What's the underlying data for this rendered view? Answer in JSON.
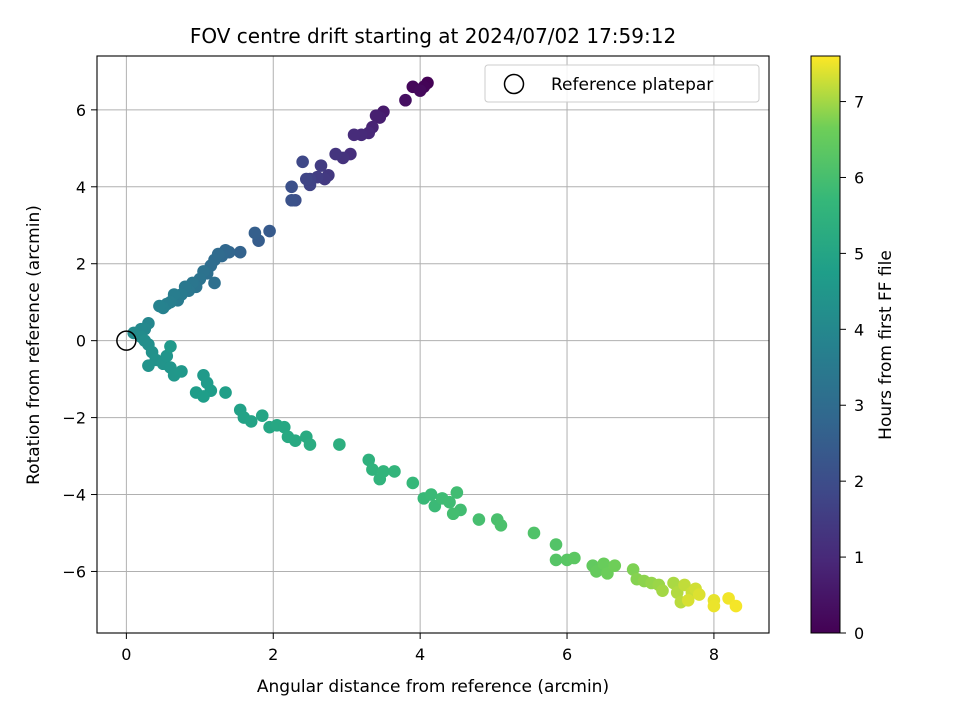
{
  "chart_data": {
    "type": "scatter",
    "title": "FOV centre drift starting at 2024/07/02 17:59:12",
    "xlabel": "Angular distance from reference (arcmin)",
    "ylabel": "Rotation from reference (arcmin)",
    "xlim": [
      -0.4,
      8.75
    ],
    "ylim": [
      -7.6,
      7.4
    ],
    "x_ticks": [
      "0",
      "2",
      "4",
      "6",
      "8"
    ],
    "y_ticks": [
      "−6",
      "−4",
      "−2",
      "0",
      "2",
      "4",
      "6"
    ],
    "grid": true,
    "legend": {
      "placement": "top-right",
      "entries": [
        "Reference platepar"
      ]
    },
    "reference_point": {
      "x": 0,
      "y": 0
    },
    "colorbar": {
      "label": "Hours from first FF file",
      "range": [
        0,
        7.6
      ],
      "ticks": [
        "0",
        "1",
        "2",
        "3",
        "4",
        "5",
        "6",
        "7"
      ],
      "colormap": "viridis"
    },
    "points": [
      [
        4.1,
        6.7,
        0.02
      ],
      [
        4.05,
        6.6,
        0.08
      ],
      [
        3.9,
        6.6,
        0.15
      ],
      [
        4.0,
        6.5,
        0.2
      ],
      [
        3.8,
        6.25,
        0.35
      ],
      [
        3.5,
        5.95,
        0.6
      ],
      [
        3.45,
        5.8,
        0.7
      ],
      [
        3.4,
        5.85,
        0.75
      ],
      [
        3.35,
        5.55,
        0.85
      ],
      [
        3.3,
        5.4,
        0.95
      ],
      [
        3.2,
        5.35,
        1.0
      ],
      [
        3.1,
        5.35,
        1.05
      ],
      [
        3.05,
        4.85,
        1.15
      ],
      [
        2.95,
        4.75,
        1.25
      ],
      [
        2.85,
        4.85,
        1.3
      ],
      [
        2.75,
        4.3,
        1.4
      ],
      [
        2.7,
        4.2,
        1.45
      ],
      [
        2.65,
        4.55,
        1.5
      ],
      [
        2.6,
        4.25,
        1.55
      ],
      [
        2.5,
        4.2,
        1.65
      ],
      [
        2.5,
        4.05,
        1.7
      ],
      [
        2.45,
        4.2,
        1.75
      ],
      [
        2.4,
        4.65,
        1.85
      ],
      [
        2.3,
        3.65,
        2.05
      ],
      [
        2.25,
        4.0,
        2.1
      ],
      [
        2.25,
        3.65,
        2.15
      ],
      [
        1.95,
        2.85,
        2.4
      ],
      [
        1.8,
        2.6,
        2.5
      ],
      [
        1.75,
        2.8,
        2.55
      ],
      [
        1.55,
        2.3,
        2.7
      ],
      [
        1.4,
        2.3,
        2.8
      ],
      [
        1.35,
        2.35,
        2.85
      ],
      [
        1.3,
        2.2,
        2.9
      ],
      [
        1.25,
        2.25,
        2.95
      ],
      [
        1.2,
        2.1,
        3.0
      ],
      [
        1.15,
        1.95,
        3.05
      ],
      [
        1.1,
        1.75,
        3.1
      ],
      [
        1.2,
        1.5,
        3.15
      ],
      [
        1.05,
        1.8,
        3.2
      ],
      [
        1.0,
        1.6,
        3.25
      ],
      [
        0.95,
        1.4,
        3.3
      ],
      [
        0.9,
        1.5,
        3.35
      ],
      [
        0.85,
        1.3,
        3.4
      ],
      [
        0.8,
        1.4,
        3.45
      ],
      [
        0.75,
        1.2,
        3.5
      ],
      [
        0.7,
        1.05,
        3.55
      ],
      [
        0.65,
        1.2,
        3.6
      ],
      [
        0.6,
        1.0,
        3.65
      ],
      [
        0.55,
        0.95,
        3.7
      ],
      [
        0.5,
        0.85,
        3.75
      ],
      [
        0.45,
        0.9,
        3.8
      ],
      [
        0.3,
        0.45,
        3.95
      ],
      [
        0.25,
        0.3,
        4.0
      ],
      [
        0.2,
        0.3,
        4.05
      ],
      [
        0.1,
        0.2,
        4.1
      ],
      [
        0.2,
        0.1,
        4.15
      ],
      [
        0.25,
        0.0,
        4.2
      ],
      [
        0.3,
        -0.1,
        4.25
      ],
      [
        0.35,
        -0.3,
        4.3
      ],
      [
        0.4,
        -0.5,
        4.35
      ],
      [
        0.3,
        -0.65,
        4.38
      ],
      [
        0.5,
        -0.6,
        4.4
      ],
      [
        0.55,
        -0.4,
        4.43
      ],
      [
        0.6,
        -0.7,
        4.45
      ],
      [
        0.65,
        -0.9,
        4.5
      ],
      [
        0.75,
        -0.8,
        4.55
      ],
      [
        0.6,
        -0.15,
        4.58
      ],
      [
        1.05,
        -0.9,
        4.6
      ],
      [
        1.1,
        -1.1,
        4.65
      ],
      [
        0.95,
        -1.35,
        4.7
      ],
      [
        1.15,
        -1.3,
        4.72
      ],
      [
        1.05,
        -1.45,
        4.75
      ],
      [
        1.35,
        -1.35,
        4.8
      ],
      [
        1.55,
        -1.8,
        4.88
      ],
      [
        1.6,
        -2.0,
        4.92
      ],
      [
        1.7,
        -2.1,
        4.95
      ],
      [
        1.85,
        -1.95,
        5.0
      ],
      [
        1.95,
        -2.25,
        5.05
      ],
      [
        2.05,
        -2.2,
        5.08
      ],
      [
        2.15,
        -2.25,
        5.1
      ],
      [
        2.2,
        -2.5,
        5.15
      ],
      [
        2.3,
        -2.6,
        5.18
      ],
      [
        2.45,
        -2.5,
        5.2
      ],
      [
        2.5,
        -2.7,
        5.25
      ],
      [
        2.9,
        -2.7,
        5.35
      ],
      [
        3.3,
        -3.1,
        5.45
      ],
      [
        3.35,
        -3.35,
        5.5
      ],
      [
        3.45,
        -3.6,
        5.55
      ],
      [
        3.5,
        -3.4,
        5.58
      ],
      [
        3.65,
        -3.4,
        5.6
      ],
      [
        3.9,
        -3.7,
        5.7
      ],
      [
        4.05,
        -4.1,
        5.75
      ],
      [
        4.15,
        -4.0,
        5.78
      ],
      [
        4.2,
        -4.3,
        5.8
      ],
      [
        4.3,
        -4.1,
        5.85
      ],
      [
        4.4,
        -4.2,
        5.88
      ],
      [
        4.5,
        -3.95,
        5.9
      ],
      [
        4.55,
        -4.4,
        5.92
      ],
      [
        4.45,
        -4.5,
        5.95
      ],
      [
        4.8,
        -4.65,
        6.0
      ],
      [
        5.05,
        -4.65,
        6.05
      ],
      [
        5.1,
        -4.8,
        6.08
      ],
      [
        5.55,
        -5.0,
        6.15
      ],
      [
        5.85,
        -5.3,
        6.2
      ],
      [
        5.85,
        -5.7,
        6.25
      ],
      [
        6.0,
        -5.7,
        6.3
      ],
      [
        6.1,
        -5.65,
        6.35
      ],
      [
        6.35,
        -5.85,
        6.45
      ],
      [
        6.4,
        -6.0,
        6.5
      ],
      [
        6.5,
        -5.8,
        6.55
      ],
      [
        6.55,
        -6.05,
        6.6
      ],
      [
        6.65,
        -5.85,
        6.65
      ],
      [
        6.9,
        -5.95,
        6.75
      ],
      [
        6.95,
        -6.2,
        6.8
      ],
      [
        7.05,
        -6.25,
        6.85
      ],
      [
        7.15,
        -6.3,
        6.9
      ],
      [
        7.25,
        -6.35,
        6.95
      ],
      [
        7.3,
        -6.5,
        7.0
      ],
      [
        7.45,
        -6.3,
        7.05
      ],
      [
        7.5,
        -6.55,
        7.1
      ],
      [
        7.55,
        -6.8,
        7.15
      ],
      [
        7.6,
        -6.35,
        7.2
      ],
      [
        7.7,
        -6.55,
        7.25
      ],
      [
        7.75,
        -6.45,
        7.3
      ],
      [
        7.65,
        -6.75,
        7.35
      ],
      [
        7.8,
        -6.6,
        7.38
      ],
      [
        8.0,
        -6.75,
        7.45
      ],
      [
        8.0,
        -6.9,
        7.48
      ],
      [
        8.2,
        -6.7,
        7.52
      ],
      [
        8.3,
        -6.9,
        7.55
      ]
    ]
  }
}
